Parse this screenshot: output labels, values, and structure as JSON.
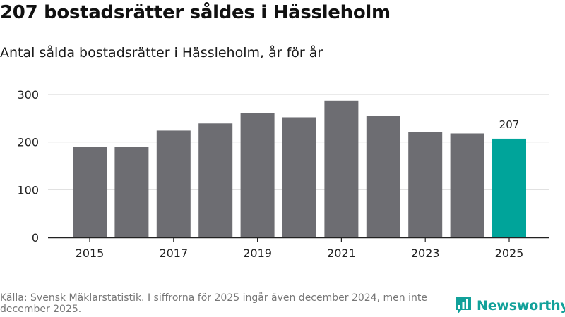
{
  "header": {
    "title": "207 bostadsrätter såldes i Hässleholm",
    "subtitle": "Antal sålda bostadsrätter i Hässleholm, år för år"
  },
  "chart_data": {
    "type": "bar",
    "categories": [
      "2015",
      "2016",
      "2017",
      "2018",
      "2019",
      "2020",
      "2021",
      "2022",
      "2023",
      "2024",
      "2025"
    ],
    "values": [
      190,
      190,
      224,
      239,
      261,
      252,
      287,
      255,
      221,
      218,
      207
    ],
    "x_tick_labels": [
      "2015",
      "2017",
      "2019",
      "2021",
      "2023",
      "2025"
    ],
    "y_ticks": [
      0,
      100,
      200,
      300
    ],
    "ylim": [
      0,
      300
    ],
    "grid": true,
    "highlight_index": 10,
    "highlight_label": "207",
    "colors": {
      "bar": "#6d6d72",
      "highlight": "#00a49a",
      "grid": "#dddddd",
      "axis": "#222222"
    }
  },
  "footer": {
    "source": "Källa: Svensk Mäklarstatistik. I siffrorna för 2025 ingår även december 2024, men inte december 2025.",
    "logo_text": "Newsworthy",
    "logo_icon": "bar-chart-icon",
    "logo_color": "#12a19a"
  }
}
